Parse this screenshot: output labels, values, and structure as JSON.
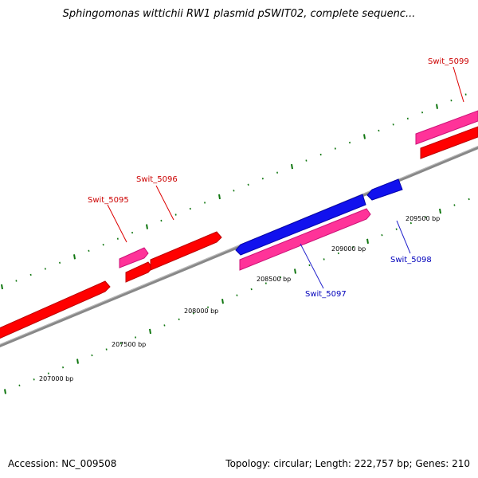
{
  "title": "Sphingomonas wittichii RW1 plasmid pSWIT02, complete sequenc...",
  "footer": {
    "accession": "Accession: NC_009508",
    "stats": "Topology: circular; Length: 222,757 bp; Genes: 210"
  },
  "colors": {
    "forward_cds": "#ff0000",
    "forward_gene": "#ff3399",
    "reverse_cds": "#1111ee",
    "forward_label": "#cc0000",
    "reverse_label": "#0000bb",
    "backbone": "#888888",
    "tick": "#117711"
  },
  "bp_labels": [
    "207000 bp",
    "207500 bp",
    "208000 bp",
    "208500 bp",
    "209000 bp",
    "209500 bp"
  ],
  "genes": [
    {
      "name": "Swit_5095",
      "strand": "forward"
    },
    {
      "name": "Swit_5096",
      "strand": "forward"
    },
    {
      "name": "Swit_5097",
      "strand": "reverse"
    },
    {
      "name": "Swit_5098",
      "strand": "reverse"
    },
    {
      "name": "Swit_5099",
      "strand": "forward"
    }
  ]
}
